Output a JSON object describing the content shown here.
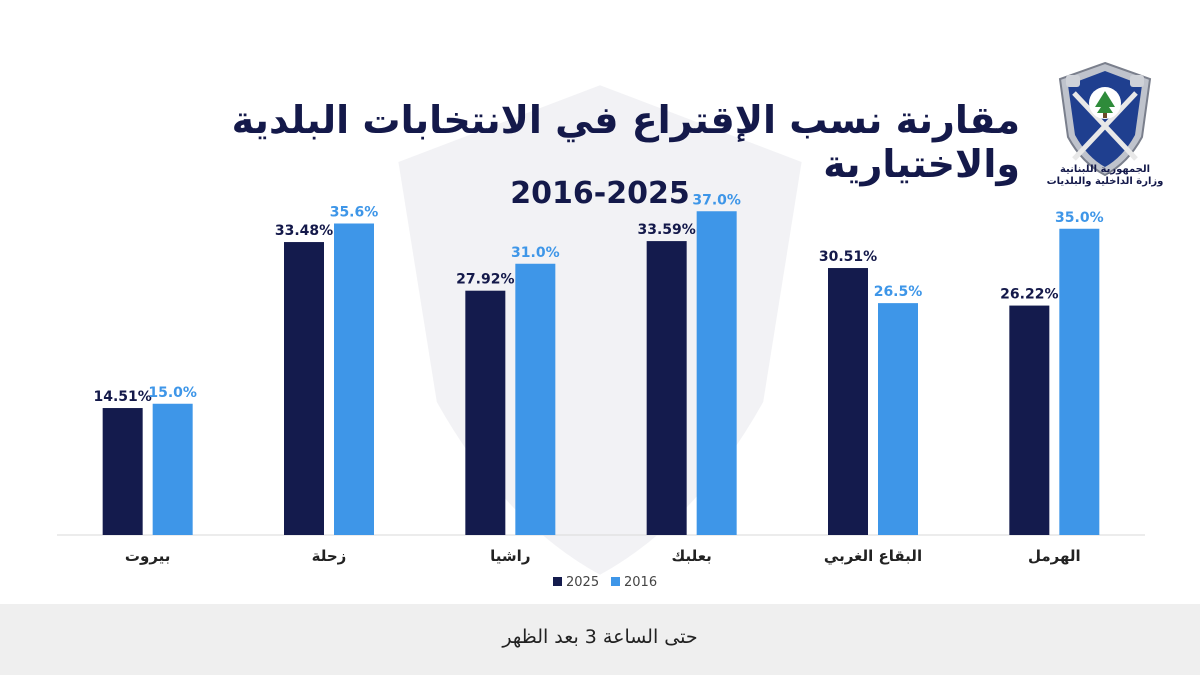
{
  "header": {
    "title": "مقارنة نسب الإقتراع في الانتخابات البلدية والاختيارية",
    "subtitle": "2016-2025"
  },
  "logo": {
    "line1": "الجمهورية اللبنانية",
    "line2": "وزارة الداخلية والبلديات",
    "icon": "ministry-emblem-icon"
  },
  "colors": {
    "series_2025": "#141b4d",
    "series_2016": "#3e96e8",
    "title": "#14194a",
    "footer_bg": "#efefef"
  },
  "chart_data": {
    "type": "bar",
    "title": "مقارنة نسب الإقتراع في الانتخابات البلدية والاختيارية",
    "subtitle": "2016-2025",
    "categories": [
      "بيروت",
      "زحلة",
      "راشيا",
      "بعلبك",
      "البقاع الغربي",
      "الهرمل"
    ],
    "series": [
      {
        "name": "2025",
        "values": [
          14.51,
          33.48,
          27.92,
          33.59,
          30.51,
          26.22
        ],
        "labels": [
          "14.51%",
          "33.48%",
          "27.92%",
          "33.59%",
          "30.51%",
          "26.22%"
        ],
        "color": "#141b4d"
      },
      {
        "name": "2016",
        "values": [
          15.0,
          35.6,
          31.0,
          37.0,
          26.5,
          35.0
        ],
        "labels": [
          "15.0%",
          "35.6%",
          "31.0%",
          "37.0%",
          "26.5%",
          "35.0%"
        ],
        "color": "#3e96e8"
      }
    ],
    "ylim": [
      0,
      40
    ],
    "grid": false,
    "legend_position": "bottom"
  },
  "footer": {
    "note": "حتى الساعة 3 بعد الظهر"
  }
}
